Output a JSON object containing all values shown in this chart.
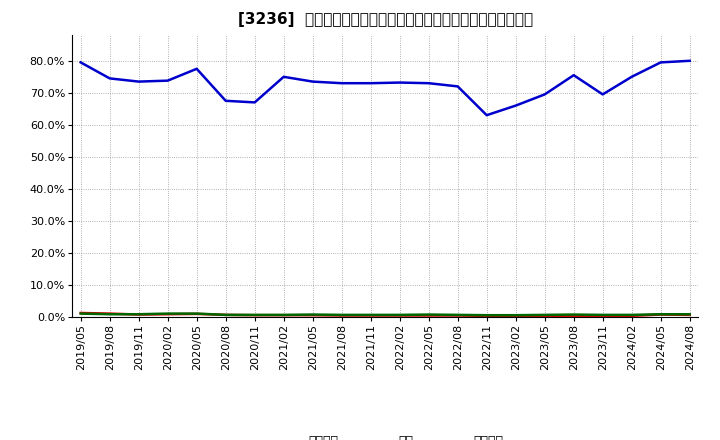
{
  "title": "[3236]  売上債権、在庫、買入債務の総資産に対する比率の推移",
  "x_labels": [
    "2019/05",
    "2019/08",
    "2019/11",
    "2020/02",
    "2020/05",
    "2020/08",
    "2020/11",
    "2021/02",
    "2021/05",
    "2021/08",
    "2021/11",
    "2022/02",
    "2022/05",
    "2022/08",
    "2022/11",
    "2023/02",
    "2023/05",
    "2023/08",
    "2023/11",
    "2024/02",
    "2024/05",
    "2024/08"
  ],
  "inventory": [
    0.795,
    0.745,
    0.735,
    0.738,
    0.775,
    0.675,
    0.67,
    0.75,
    0.735,
    0.73,
    0.73,
    0.732,
    0.73,
    0.72,
    0.63,
    0.66,
    0.695,
    0.755,
    0.695,
    0.75,
    0.795,
    0.8
  ],
  "receivables": [
    0.012,
    0.01,
    0.007,
    0.008,
    0.009,
    0.006,
    0.005,
    0.005,
    0.005,
    0.004,
    0.004,
    0.004,
    0.004,
    0.004,
    0.003,
    0.003,
    0.003,
    0.003,
    0.003,
    0.003,
    0.007,
    0.006
  ],
  "payables": [
    0.01,
    0.008,
    0.008,
    0.01,
    0.01,
    0.006,
    0.006,
    0.006,
    0.007,
    0.006,
    0.006,
    0.006,
    0.007,
    0.006,
    0.005,
    0.005,
    0.006,
    0.007,
    0.006,
    0.006,
    0.008,
    0.008
  ],
  "inventory_color": "#0000cc",
  "receivables_color": "#dd0000",
  "payables_color": "#006600",
  "ylim": [
    0.0,
    0.88
  ],
  "yticks": [
    0.0,
    0.1,
    0.2,
    0.3,
    0.4,
    0.5,
    0.6,
    0.7,
    0.8
  ],
  "legend_labels": [
    "売上債権",
    "在庫",
    "買入債務"
  ],
  "bg_color": "#ffffff",
  "plot_bg_color": "#ffffff",
  "grid_color": "#999999",
  "title_fontsize": 11,
  "axis_fontsize": 8,
  "legend_fontsize": 9
}
